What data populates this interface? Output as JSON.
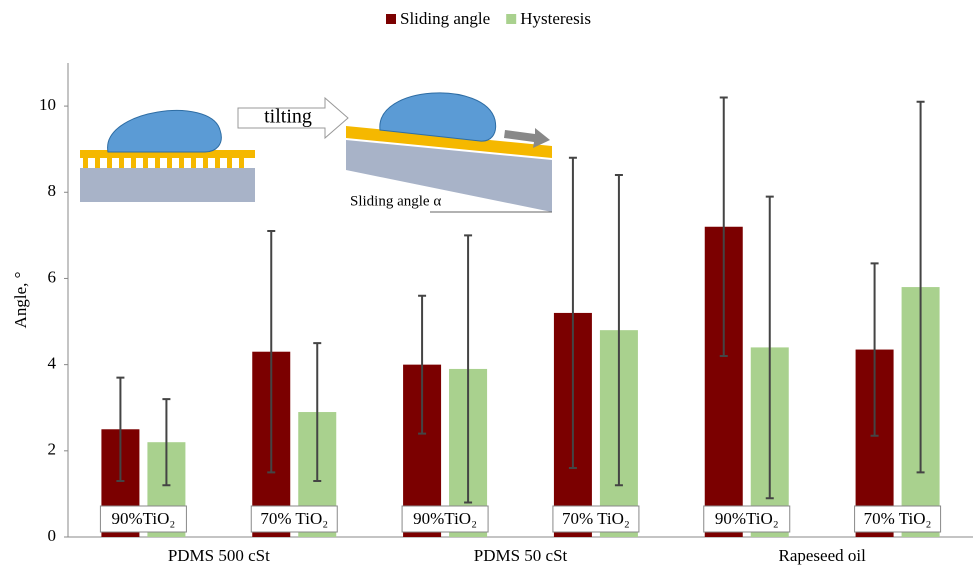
{
  "chart_data": {
    "type": "bar",
    "y_label": "Angle, °",
    "groups": [
      "PDMS 500 cSt",
      "PDMS 50 cSt",
      "Rapeseed oil"
    ],
    "categories": [
      "90%TiO₂",
      "70% TiO₂",
      "90%TiO₂",
      "70% TiO₂",
      "90%TiO₂",
      "70% TiO₂"
    ],
    "series": [
      {
        "name": "Sliding angle",
        "color": "#7b0000",
        "values": [
          2.5,
          4.3,
          4.0,
          5.2,
          7.2,
          4.35
        ],
        "errors": [
          1.2,
          2.8,
          1.6,
          3.6,
          3.0,
          2.0
        ]
      },
      {
        "name": "Hysteresis",
        "color": "#a9d18e",
        "values": [
          2.2,
          2.9,
          3.9,
          4.8,
          4.4,
          5.8
        ],
        "errors": [
          1.0,
          1.6,
          3.1,
          3.6,
          3.5,
          4.3
        ]
      }
    ],
    "ylim": [
      0,
      11
    ],
    "yticks": [
      0,
      2,
      4,
      6,
      8,
      10
    ],
    "grid": false,
    "legend": "top",
    "annotations": [
      "tilting",
      "Sliding angle α"
    ]
  }
}
